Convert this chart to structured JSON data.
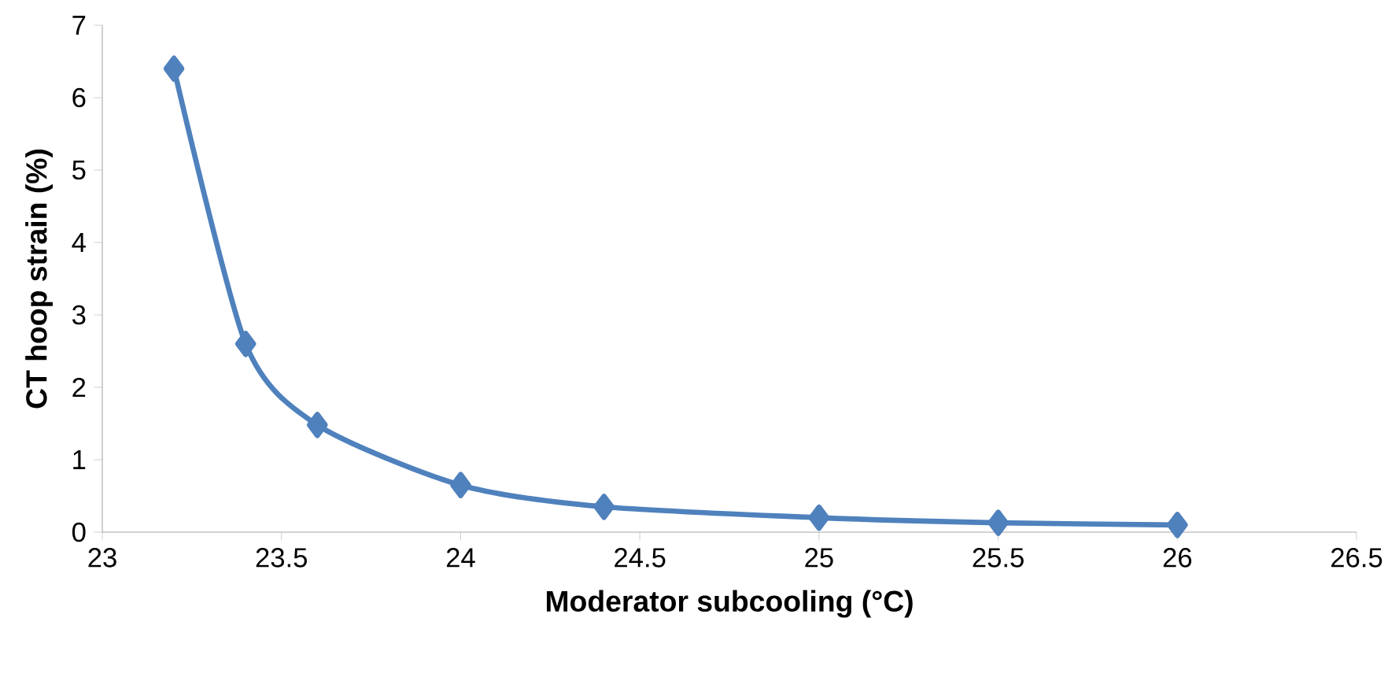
{
  "chart_data": {
    "type": "line",
    "xlabel": "Moderator subcooling (°C)",
    "ylabel": "CT hoop strain (%)",
    "x": [
      23.2,
      23.4,
      23.6,
      24.0,
      24.4,
      25.0,
      25.5,
      26.0
    ],
    "values": [
      6.4,
      2.6,
      1.48,
      0.65,
      0.35,
      0.2,
      0.13,
      0.1
    ],
    "color": "#4f81bd",
    "marker": "diamond",
    "line_style": "solid",
    "xlim": [
      23,
      26.5
    ],
    "xticks": [
      23,
      23.5,
      24,
      24.5,
      25,
      25.5,
      26,
      26.5
    ],
    "ylim": [
      0,
      7
    ],
    "yticks": [
      0,
      1,
      2,
      3,
      4,
      5,
      6,
      7
    ]
  }
}
